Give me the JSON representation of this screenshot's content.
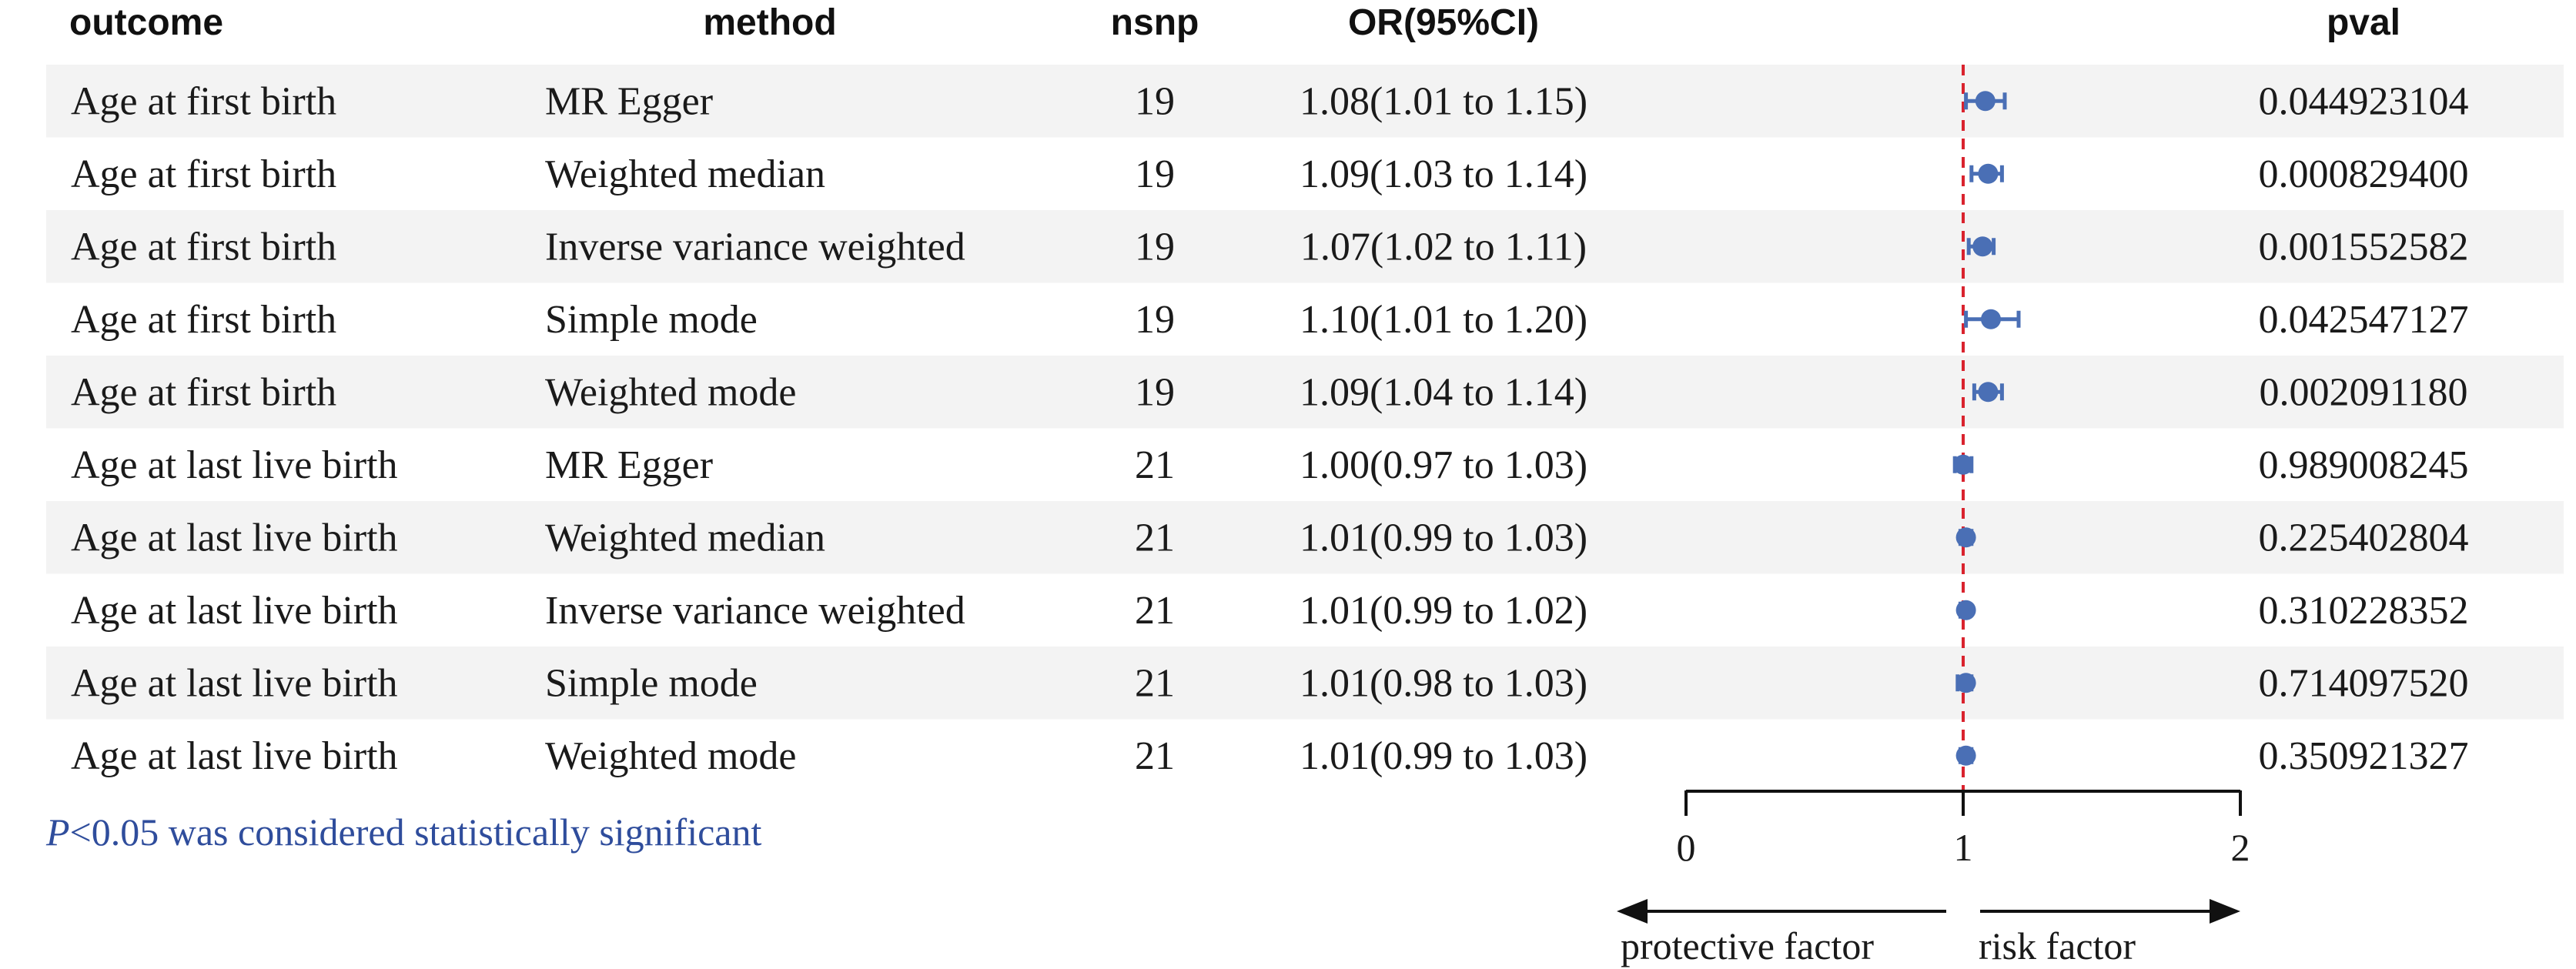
{
  "headers": {
    "outcome": "outcome",
    "method": "method",
    "nsnp": "nsnp",
    "or_ci": "OR(95%CI)",
    "pval": "pval"
  },
  "colors": {
    "point": "#4A6FB5",
    "reference_line": "#D9232E",
    "stripe": "#F3F3F3",
    "note": "#2F4D9C"
  },
  "chart_data": {
    "type": "forest",
    "reference_value": 1,
    "xlim": [
      0,
      2
    ],
    "xticks": [
      "0",
      "1",
      "2"
    ],
    "direction_labels": {
      "left": "protective factor",
      "right": "risk factor"
    },
    "rows": [
      {
        "outcome": "Age at first birth",
        "method": "MR Egger",
        "nsnp": "19",
        "or_ci": "1.08(1.01 to 1.15)",
        "or": 1.08,
        "lower": 1.01,
        "upper": 1.15,
        "pval": "0.044923104"
      },
      {
        "outcome": "Age at first birth",
        "method": "Weighted median",
        "nsnp": "19",
        "or_ci": "1.09(1.03 to 1.14)",
        "or": 1.09,
        "lower": 1.03,
        "upper": 1.14,
        "pval": "0.000829400"
      },
      {
        "outcome": "Age at first birth",
        "method": "Inverse variance weighted",
        "nsnp": "19",
        "or_ci": "1.07(1.02 to 1.11)",
        "or": 1.07,
        "lower": 1.02,
        "upper": 1.11,
        "pval": "0.001552582"
      },
      {
        "outcome": "Age at first birth",
        "method": "Simple mode",
        "nsnp": "19",
        "or_ci": "1.10(1.01 to 1.20)",
        "or": 1.1,
        "lower": 1.01,
        "upper": 1.2,
        "pval": "0.042547127"
      },
      {
        "outcome": "Age at first birth",
        "method": "Weighted mode",
        "nsnp": "19",
        "or_ci": "1.09(1.04 to 1.14)",
        "or": 1.09,
        "lower": 1.04,
        "upper": 1.14,
        "pval": "0.002091180"
      },
      {
        "outcome": "Age at last live birth",
        "method": "MR Egger",
        "nsnp": "21",
        "or_ci": "1.00(0.97 to 1.03)",
        "or": 1.0,
        "lower": 0.97,
        "upper": 1.03,
        "pval": "0.989008245"
      },
      {
        "outcome": "Age at last live birth",
        "method": "Weighted median",
        "nsnp": "21",
        "or_ci": "1.01(0.99 to 1.03)",
        "or": 1.01,
        "lower": 0.99,
        "upper": 1.03,
        "pval": "0.225402804"
      },
      {
        "outcome": "Age at last live birth",
        "method": "Inverse variance weighted",
        "nsnp": "21",
        "or_ci": "1.01(0.99 to 1.02)",
        "or": 1.01,
        "lower": 0.99,
        "upper": 1.02,
        "pval": "0.310228352"
      },
      {
        "outcome": "Age at last live birth",
        "method": "Simple mode",
        "nsnp": "21",
        "or_ci": "1.01(0.98 to 1.03)",
        "or": 1.01,
        "lower": 0.98,
        "upper": 1.03,
        "pval": "0.714097520"
      },
      {
        "outcome": "Age at last live birth",
        "method": "Weighted mode",
        "nsnp": "21",
        "or_ci": "1.01(0.99 to 1.03)",
        "or": 1.01,
        "lower": 0.99,
        "upper": 1.03,
        "pval": "0.350921327"
      }
    ]
  },
  "note": {
    "p_symbol": "P",
    "text": "<0.05 was considered statistically significant"
  }
}
